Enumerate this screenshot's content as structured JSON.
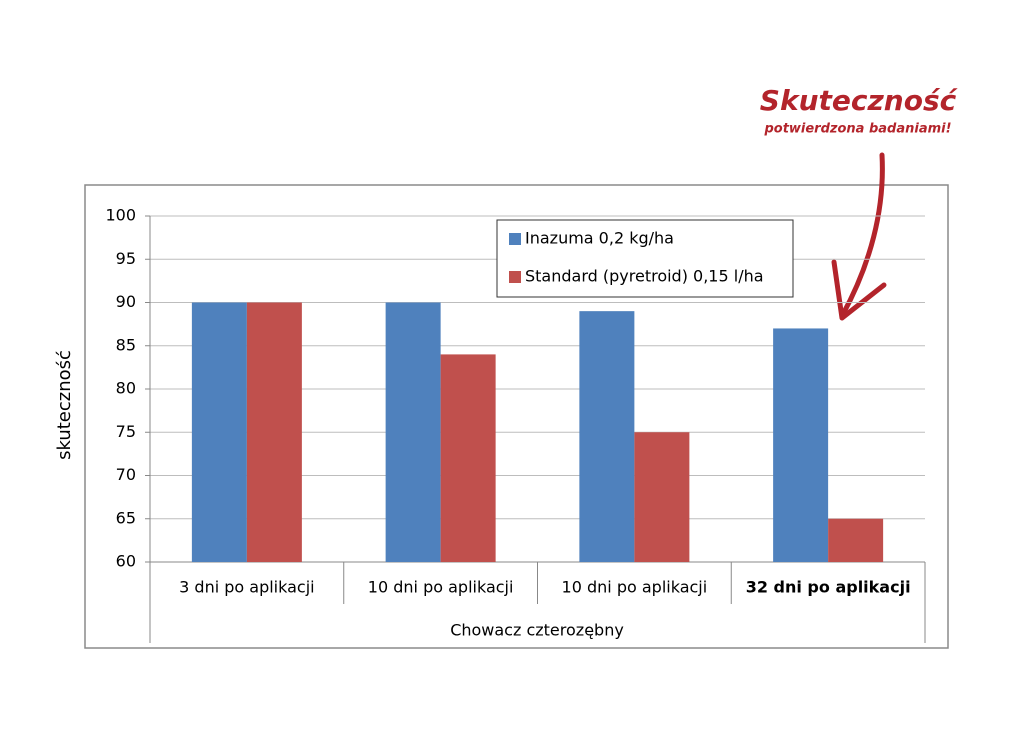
{
  "chart_data": {
    "type": "bar",
    "y_label": "skuteczność",
    "group_label": "Chowacz czterozębny",
    "categories": [
      "3 dni po aplikacji",
      "10 dni po aplikacji",
      "10 dni po aplikacji",
      "32 dni po aplikacji"
    ],
    "category_bold": [
      false,
      false,
      false,
      true
    ],
    "series": [
      {
        "name": "Inazuma 0,2 kg/ha",
        "color": "#4f81bd",
        "values": [
          90,
          90,
          89,
          87
        ]
      },
      {
        "name": "Standard (pyretroid) 0,15 l/ha",
        "color": "#c0504d",
        "values": [
          90,
          84,
          75,
          65
        ]
      }
    ],
    "ylim": [
      60,
      100
    ],
    "yticks": [
      60,
      65,
      70,
      75,
      80,
      85,
      90,
      95,
      100
    ],
    "grid": true,
    "legend": "top-right",
    "annotation": {
      "title": "Skuteczność",
      "subtitle": "potwierdzona badaniami!",
      "color": "#b3242b"
    }
  }
}
